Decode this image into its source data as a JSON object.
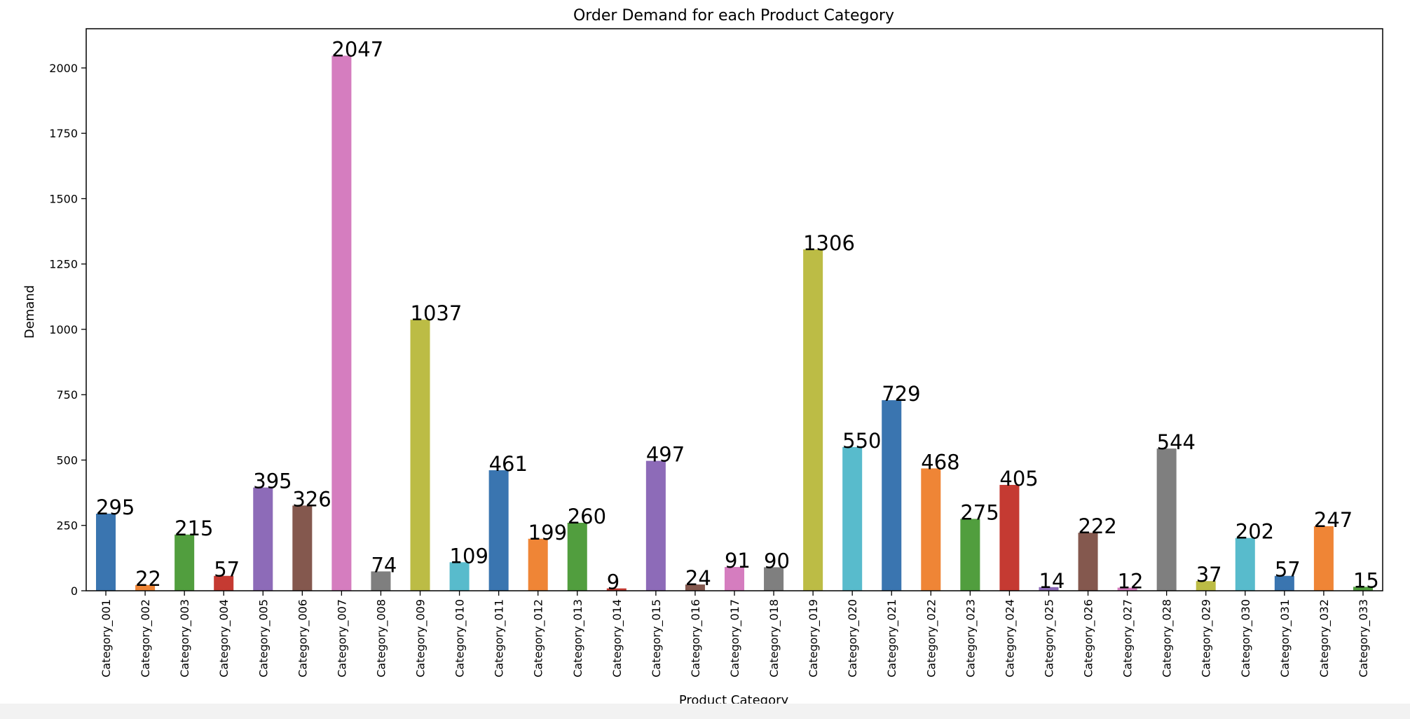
{
  "chart_data": {
    "type": "bar",
    "title": "Order Demand for each Product Category",
    "xlabel": "Product Category",
    "ylabel": "Demand",
    "ylim": [
      0,
      2150
    ],
    "yticks": [
      0,
      250,
      500,
      750,
      1000,
      1250,
      1500,
      1750,
      2000
    ],
    "grid": false,
    "legend": "none",
    "categories": [
      "Category_001",
      "Category_002",
      "Category_003",
      "Category_004",
      "Category_005",
      "Category_006",
      "Category_007",
      "Category_008",
      "Category_009",
      "Category_010",
      "Category_011",
      "Category_012",
      "Category_013",
      "Category_014",
      "Category_015",
      "Category_016",
      "Category_017",
      "Category_018",
      "Category_019",
      "Category_020",
      "Category_021",
      "Category_022",
      "Category_023",
      "Category_024",
      "Category_025",
      "Category_026",
      "Category_027",
      "Category_028",
      "Category_029",
      "Category_030",
      "Category_031",
      "Category_032",
      "Category_033"
    ],
    "values": [
      295,
      22,
      215,
      57,
      395,
      326,
      2047,
      74,
      1037,
      109,
      461,
      199,
      260,
      9,
      497,
      24,
      91,
      90,
      1306,
      550,
      729,
      468,
      275,
      405,
      14,
      222,
      12,
      544,
      37,
      202,
      57,
      247,
      15
    ],
    "colors": [
      "#3a75b0",
      "#ef8536",
      "#519e3e",
      "#c53a32",
      "#8d6bb8",
      "#84584e",
      "#d57dbf",
      "#7f7f7f",
      "#bcbc45",
      "#58bbcc"
    ]
  }
}
